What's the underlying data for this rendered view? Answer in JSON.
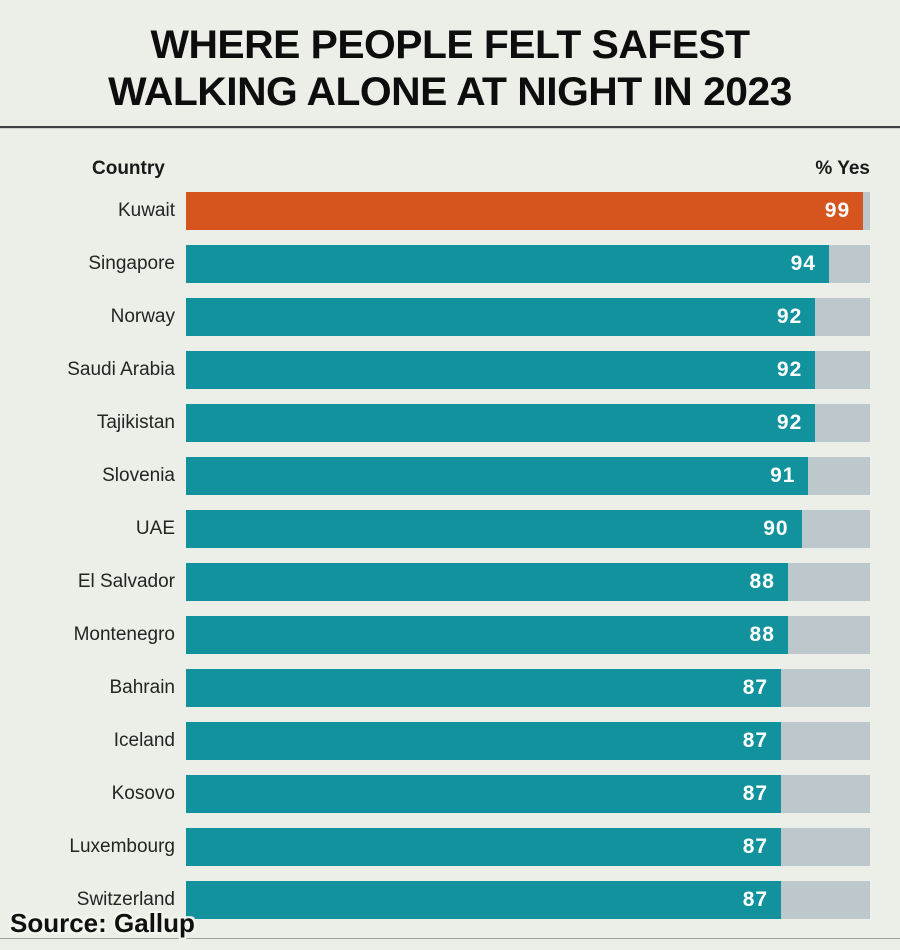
{
  "title": {
    "line1": "WHERE PEOPLE FELT SAFEST",
    "line2": "WALKING ALONE AT NIGHT IN 2023"
  },
  "header": {
    "country_label": "Country",
    "value_label": "% Yes"
  },
  "source": {
    "text": "Source: Gallup"
  },
  "colors": {
    "background": "#ecefe8",
    "bar_teal": "#12929d",
    "bar_highlight_orange": "#d6541d",
    "track_gray": "#bcc8cc",
    "value_text": "#ffffff",
    "title_text": "#0d0d0d"
  },
  "chart_data": {
    "type": "bar",
    "orientation": "horizontal",
    "title": "WHERE PEOPLE FELT SAFEST WALKING ALONE AT NIGHT IN 2023",
    "xlabel": "% Yes",
    "ylabel": "Country",
    "xlim": [
      0,
      100
    ],
    "grid": false,
    "legend": false,
    "highlight_index": 0,
    "source": "Gallup",
    "categories": [
      "Kuwait",
      "Singapore",
      "Norway",
      "Saudi Arabia",
      "Tajikistan",
      "Slovenia",
      "UAE",
      "El Salvador",
      "Montenegro",
      "Bahrain",
      "Iceland",
      "Kosovo",
      "Luxembourg",
      "Switzerland"
    ],
    "values": [
      99,
      94,
      92,
      92,
      92,
      91,
      90,
      88,
      88,
      87,
      87,
      87,
      87,
      87
    ]
  }
}
